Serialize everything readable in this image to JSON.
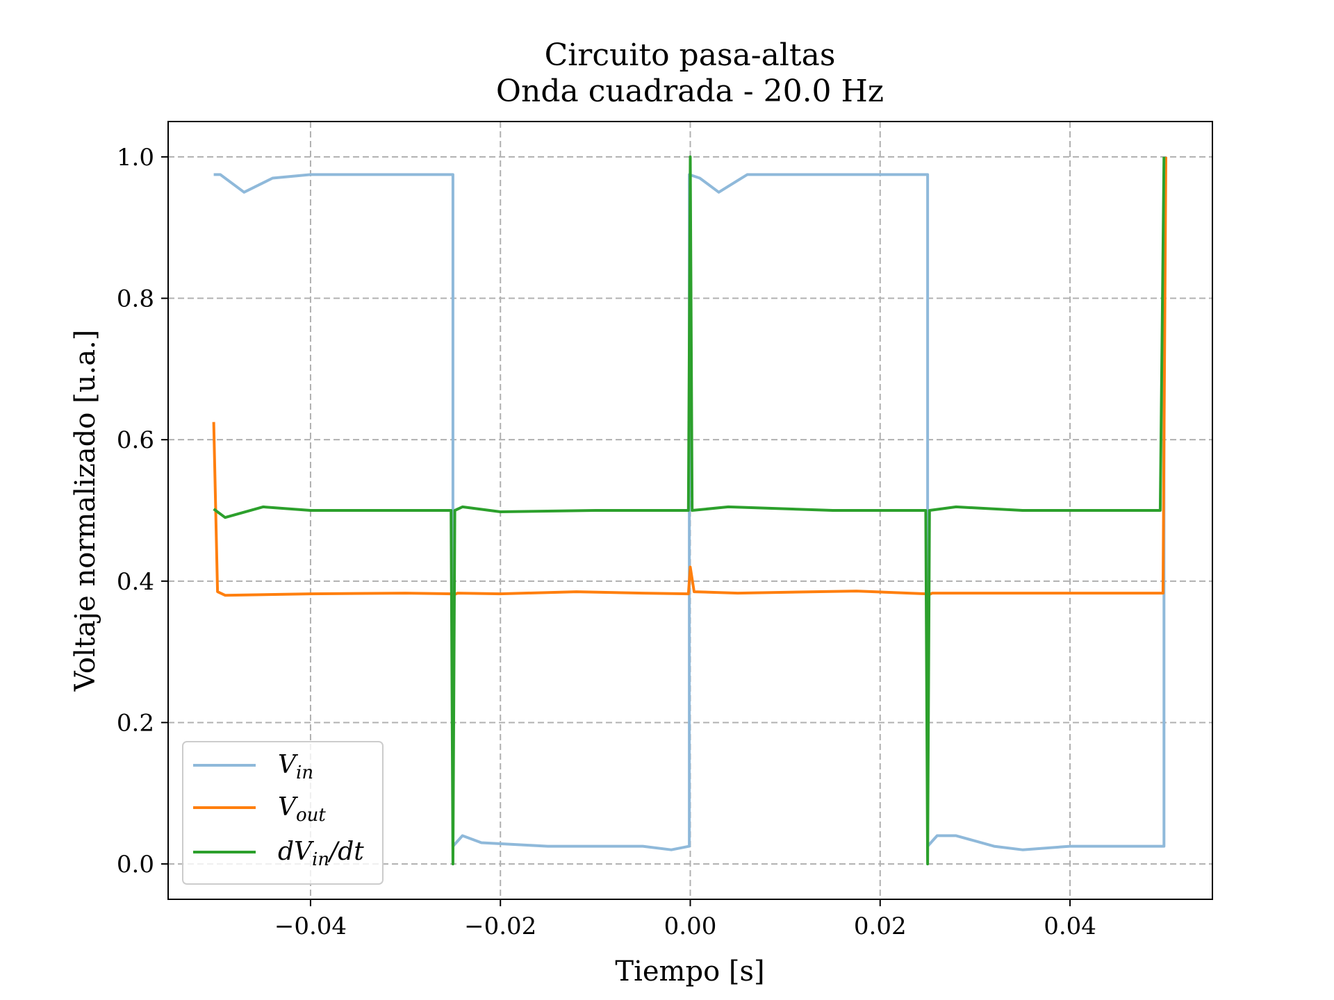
{
  "chart_data": {
    "type": "line",
    "title": "Circuito pasa-altas",
    "subtitle": "Onda cuadrada - 20.0 Hz",
    "xlabel": "Tiempo [s]",
    "ylabel": "Voltaje normalizado [u.a.]",
    "xlim": [
      -0.055,
      0.055
    ],
    "ylim": [
      -0.05,
      1.05
    ],
    "xticks": [
      -0.04,
      -0.02,
      0.0,
      0.02,
      0.04
    ],
    "xtick_labels": [
      "−0.04",
      "−0.02",
      "0.00",
      "0.02",
      "0.04"
    ],
    "yticks": [
      0.0,
      0.2,
      0.4,
      0.6,
      0.8,
      1.0
    ],
    "ytick_labels": [
      "0.0",
      "0.2",
      "0.4",
      "0.6",
      "0.8",
      "1.0"
    ],
    "grid": true,
    "legend_position": "lower-left",
    "series": [
      {
        "name": "V_in",
        "legend_main": "V",
        "legend_sub": "in",
        "color": "#8fb9da",
        "x": [
          -0.0502,
          -0.0495,
          -0.047,
          -0.044,
          -0.04,
          -0.035,
          -0.03,
          -0.025,
          -0.025,
          -0.024,
          -0.022,
          -0.015,
          -0.01,
          -0.005,
          -0.002,
          -0.0001,
          -0.0001,
          0.001,
          0.003,
          0.006,
          0.01,
          0.015,
          0.02,
          0.025,
          0.025,
          0.026,
          0.028,
          0.032,
          0.035,
          0.04,
          0.045,
          0.0499,
          0.0499,
          0.0502
        ],
        "y": [
          0.975,
          0.975,
          0.95,
          0.97,
          0.975,
          0.975,
          0.975,
          0.975,
          0.025,
          0.04,
          0.03,
          0.025,
          0.025,
          0.025,
          0.02,
          0.025,
          0.975,
          0.97,
          0.95,
          0.975,
          0.975,
          0.975,
          0.975,
          0.975,
          0.025,
          0.04,
          0.04,
          0.025,
          0.02,
          0.025,
          0.025,
          0.025,
          0.975,
          0.975
        ]
      },
      {
        "name": "V_out",
        "legend_main": "V",
        "legend_sub": "out",
        "color": "#ff7f0e",
        "x": [
          -0.0502,
          -0.0498,
          -0.049,
          -0.04,
          -0.03,
          -0.0251,
          -0.025,
          -0.0245,
          -0.02,
          -0.012,
          -0.005,
          -0.0002,
          0.0,
          0.0004,
          0.005,
          0.0175,
          0.0249,
          0.025,
          0.0255,
          0.035,
          0.045,
          0.0498,
          0.0501
        ],
        "y": [
          0.625,
          0.385,
          0.38,
          0.382,
          0.383,
          0.382,
          0.38,
          0.383,
          0.382,
          0.385,
          0.383,
          0.382,
          0.42,
          0.385,
          0.383,
          0.386,
          0.382,
          0.38,
          0.383,
          0.383,
          0.383,
          0.383,
          1.0
        ]
      },
      {
        "name": "dV_in/dt",
        "legend_main": "dV",
        "legend_sub": "in",
        "legend_tail": "/dt",
        "color": "#2ca02c",
        "x": [
          -0.0502,
          -0.049,
          -0.045,
          -0.04,
          -0.03,
          -0.0252,
          -0.025,
          -0.0248,
          -0.024,
          -0.02,
          -0.01,
          -0.001,
          -0.0002,
          0.0,
          0.0002,
          0.004,
          0.015,
          0.024,
          0.0248,
          0.025,
          0.0252,
          0.028,
          0.035,
          0.045,
          0.0495,
          0.0499
        ],
        "y": [
          0.502,
          0.49,
          0.505,
          0.5,
          0.5,
          0.5,
          0.0,
          0.5,
          0.505,
          0.498,
          0.5,
          0.5,
          0.5,
          1.0,
          0.5,
          0.505,
          0.5,
          0.5,
          0.5,
          0.0,
          0.5,
          0.505,
          0.5,
          0.5,
          0.5,
          1.0
        ]
      }
    ]
  }
}
